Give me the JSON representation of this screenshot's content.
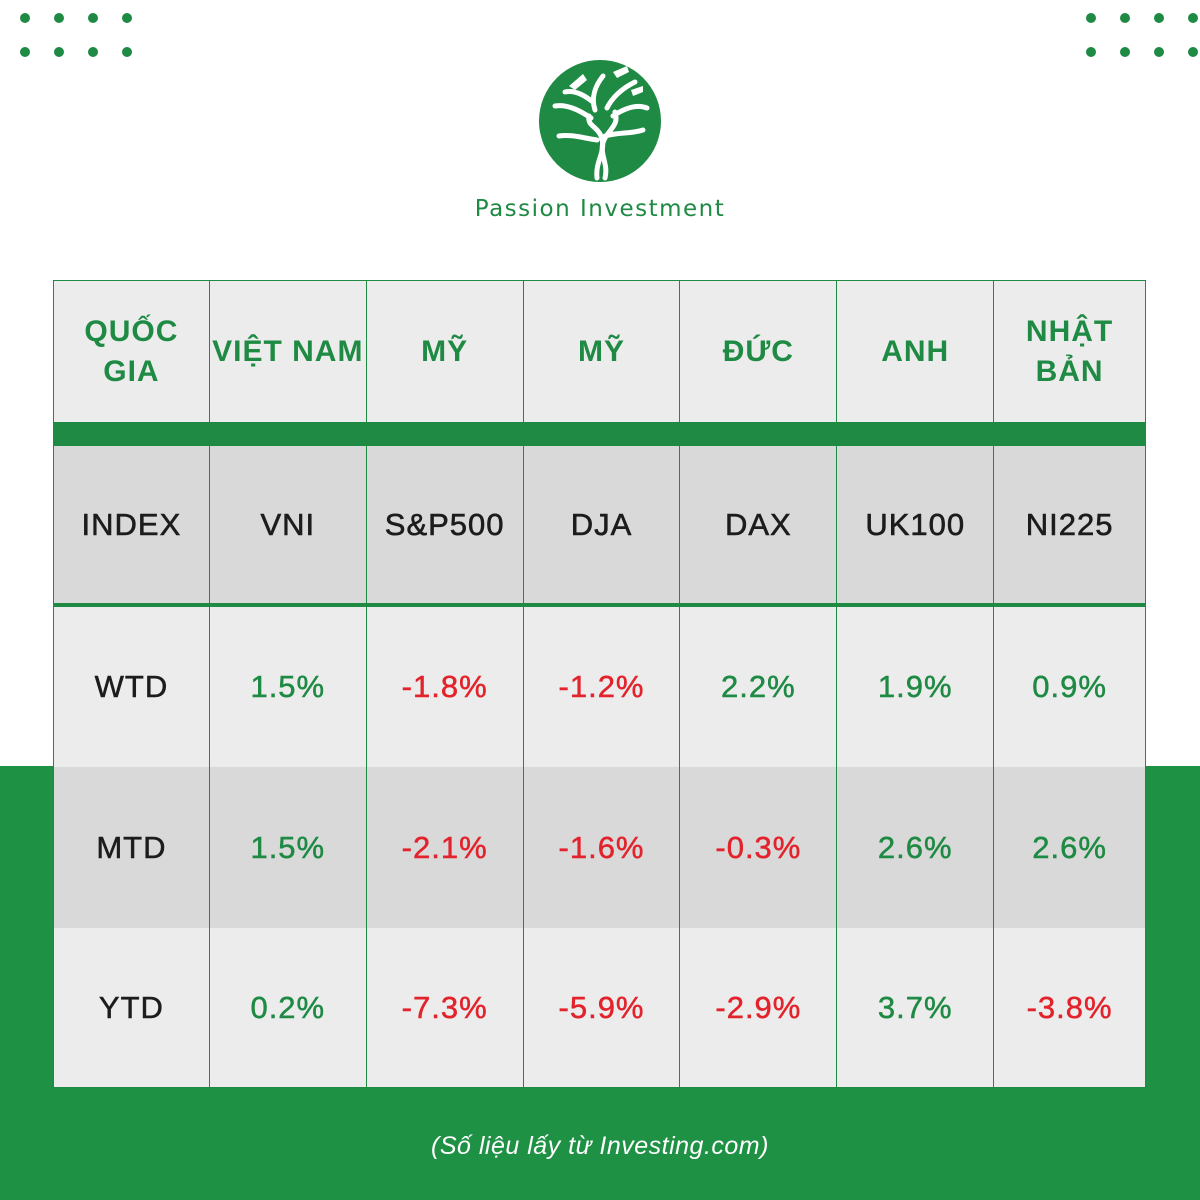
{
  "brand": {
    "name": "Passion Investment",
    "logo_icon": "tree-logo-icon",
    "accent_color": "#1e8a43",
    "negative_color": "#e3232c"
  },
  "table": {
    "header": [
      "QUỐC GIA",
      "VIỆT NAM",
      "MỸ",
      "MỸ",
      "ĐỨC",
      "ANH",
      "NHẬT BẢN"
    ],
    "index_row": [
      "INDEX",
      "VNI",
      "S&P500",
      "DJA",
      "DAX",
      "UK100",
      "NI225"
    ],
    "rows": [
      {
        "label": "WTD",
        "values": [
          "1.5%",
          "-1.8%",
          "-1.2%",
          "2.2%",
          "1.9%",
          "0.9%"
        ]
      },
      {
        "label": "MTD",
        "values": [
          "1.5%",
          "-2.1%",
          "-1.6%",
          "-0.3%",
          "2.6%",
          "2.6%"
        ]
      },
      {
        "label": "YTD",
        "values": [
          "0.2%",
          "-7.3%",
          "-5.9%",
          "-2.9%",
          "3.7%",
          "-3.8%"
        ]
      }
    ]
  },
  "footer": {
    "source": "(Số liệu lấy từ Investing.com)"
  }
}
